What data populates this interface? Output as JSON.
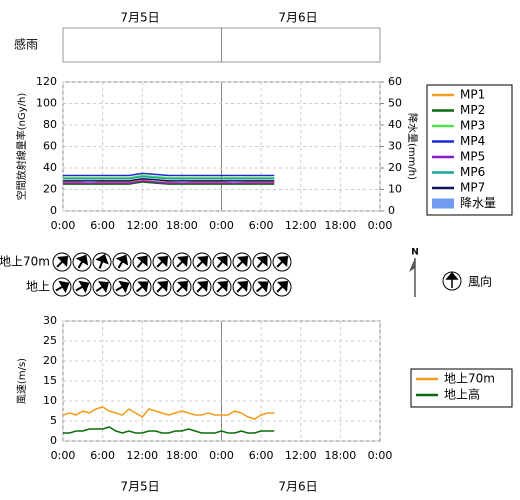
{
  "dates": [
    "7月5日",
    "7月6日"
  ],
  "rain_sense": {
    "label": "感雨"
  },
  "wind_direction": {
    "legend": "風向",
    "north": "N",
    "rows": [
      {
        "label": "地上70m",
        "directions": [
          45,
          30,
          20,
          30,
          40,
          45,
          45,
          45,
          40,
          45,
          40,
          45
        ]
      },
      {
        "label": "地上",
        "directions": [
          60,
          60,
          55,
          60,
          50,
          45,
          45,
          45,
          45,
          45,
          50,
          45
        ]
      }
    ]
  },
  "chart_data": [
    {
      "type": "line",
      "ylabel": "空間放射線量率(nGy/h)",
      "y2label": "降水量(mm/h)",
      "grid": true,
      "x": [
        0,
        2,
        4,
        6,
        8,
        10,
        12,
        14,
        16,
        18,
        20,
        22,
        24,
        26,
        28,
        30,
        32
      ],
      "xlim": [
        0,
        48
      ],
      "xticks": [
        {
          "value": 0,
          "label": "0:00"
        },
        {
          "value": 6,
          "label": "6:00"
        },
        {
          "value": 12,
          "label": "12:00"
        },
        {
          "value": 18,
          "label": "18:00"
        },
        {
          "value": 24,
          "label": "0:00"
        },
        {
          "value": 30,
          "label": "6:00"
        },
        {
          "value": 36,
          "label": "12:00"
        },
        {
          "value": 42,
          "label": "18:00"
        },
        {
          "value": 48,
          "label": "0:00"
        }
      ],
      "ylim": [
        0,
        120
      ],
      "yticks": [
        0,
        20,
        40,
        60,
        80,
        100,
        120
      ],
      "y2lim": [
        0,
        60
      ],
      "y2ticks": [
        0,
        10,
        20,
        30,
        40,
        50,
        60
      ],
      "series": [
        {
          "name": "MP1",
          "color": "#f39c1e",
          "values": [
            27,
            27,
            26,
            27,
            27,
            27,
            29,
            27,
            27,
            26,
            27,
            27,
            27,
            26,
            27,
            27,
            27
          ]
        },
        {
          "name": "MP2",
          "color": "#0a6b0a",
          "values": [
            25,
            25,
            25,
            25,
            25,
            25,
            27,
            26,
            25,
            25,
            25,
            25,
            25,
            25,
            25,
            25,
            25
          ]
        },
        {
          "name": "MP3",
          "color": "#55e055",
          "values": [
            31,
            31,
            31,
            31,
            31,
            31,
            33,
            32,
            31,
            31,
            31,
            31,
            31,
            31,
            31,
            31,
            31
          ]
        },
        {
          "name": "MP4",
          "color": "#1a2ad8",
          "values": [
            33,
            33,
            33,
            33,
            33,
            33,
            35,
            34,
            33,
            33,
            33,
            33,
            33,
            33,
            33,
            33,
            33
          ]
        },
        {
          "name": "MP5",
          "color": "#8a1fc8",
          "values": [
            26,
            26,
            26,
            26,
            26,
            26,
            28,
            27,
            26,
            26,
            26,
            26,
            26,
            26,
            26,
            26,
            26
          ]
        },
        {
          "name": "MP6",
          "color": "#1aa59a",
          "values": [
            30,
            30,
            30,
            30,
            30,
            30,
            32,
            31,
            30,
            30,
            30,
            30,
            30,
            30,
            30,
            30,
            30
          ]
        },
        {
          "name": "MP7",
          "color": "#101060",
          "values": [
            28,
            28,
            28,
            28,
            28,
            28,
            30,
            29,
            28,
            28,
            28,
            28,
            28,
            28,
            28,
            28,
            28
          ]
        },
        {
          "name": "降水量",
          "color": "#6f9cf0",
          "type": "bar",
          "axis": "y2",
          "values": [
            null,
            null,
            null,
            null,
            null,
            null,
            null,
            null,
            null,
            null,
            null,
            null,
            null,
            null,
            null,
            null,
            null
          ]
        }
      ]
    },
    {
      "type": "line",
      "ylabel": "風速(m/s)",
      "grid": true,
      "x": [
        0,
        1,
        2,
        3,
        4,
        5,
        6,
        7,
        8,
        9,
        10,
        11,
        12,
        13,
        14,
        15,
        16,
        17,
        18,
        19,
        20,
        21,
        22,
        23,
        24,
        25,
        26,
        27,
        28,
        29,
        30,
        31,
        32
      ],
      "xlim": [
        0,
        48
      ],
      "xticks": [
        {
          "value": 0,
          "label": "0:00"
        },
        {
          "value": 6,
          "label": "6:00"
        },
        {
          "value": 12,
          "label": "12:00"
        },
        {
          "value": 18,
          "label": "18:00"
        },
        {
          "value": 24,
          "label": "0:00"
        },
        {
          "value": 30,
          "label": "6:00"
        },
        {
          "value": 36,
          "label": "12:00"
        },
        {
          "value": 42,
          "label": "18:00"
        },
        {
          "value": 48,
          "label": "0:00"
        }
      ],
      "ylim": [
        0,
        30
      ],
      "yticks": [
        0,
        5,
        10,
        15,
        20,
        25,
        30
      ],
      "series": [
        {
          "name": "地上70m",
          "color": "#f39c1e",
          "values": [
            6.5,
            7,
            6.5,
            7.5,
            7,
            8,
            8.5,
            7.5,
            7,
            6.5,
            8,
            7,
            6,
            8,
            7.5,
            7,
            6.5,
            7,
            7.5,
            7,
            6.5,
            6.5,
            7,
            6.5,
            6.5,
            6.5,
            7.5,
            7,
            6,
            5.5,
            6.5,
            7,
            7
          ]
        },
        {
          "name": "地上高",
          "color": "#0a6b0a",
          "values": [
            2,
            2,
            2.5,
            2.5,
            3,
            3,
            3,
            3.5,
            2.5,
            2,
            2.5,
            2,
            2,
            2.5,
            2.5,
            2,
            2,
            2.5,
            2.5,
            3,
            2.5,
            2,
            2,
            2,
            2.5,
            2,
            2,
            2.5,
            2,
            2,
            2.5,
            2.5,
            2.5
          ]
        }
      ]
    }
  ]
}
